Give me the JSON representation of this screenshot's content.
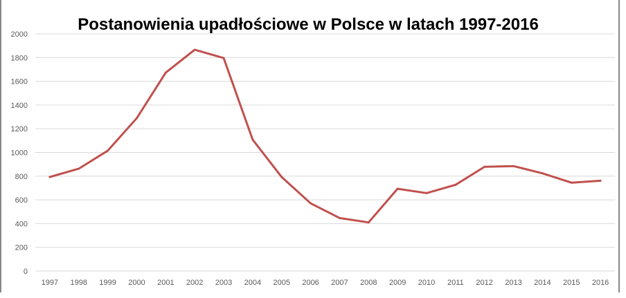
{
  "chart_data": {
    "type": "line",
    "title": "Postanowienia upadłościowe w Polsce w latach 1997-2016",
    "xlabel": "",
    "ylabel": "",
    "categories": [
      "1997",
      "1998",
      "1999",
      "2000",
      "2001",
      "2002",
      "2003",
      "2004",
      "2005",
      "2006",
      "2007",
      "2008",
      "2009",
      "2010",
      "2011",
      "2012",
      "2013",
      "2014",
      "2015",
      "2016"
    ],
    "series": [
      {
        "values": [
          793,
          863,
          1015,
          1289,
          1673,
          1866,
          1796,
          1108,
          793,
          571,
          447,
          410,
          694,
          657,
          727,
          879,
          885,
          824,
          745,
          762
        ],
        "color": "#c0504d"
      }
    ],
    "ylim": [
      0,
      2000
    ],
    "yticks": [
      "0",
      "200",
      "400",
      "600",
      "800",
      "1000",
      "1200",
      "1400",
      "1600",
      "1800",
      "2000"
    ],
    "grid": true,
    "legend": "none"
  }
}
